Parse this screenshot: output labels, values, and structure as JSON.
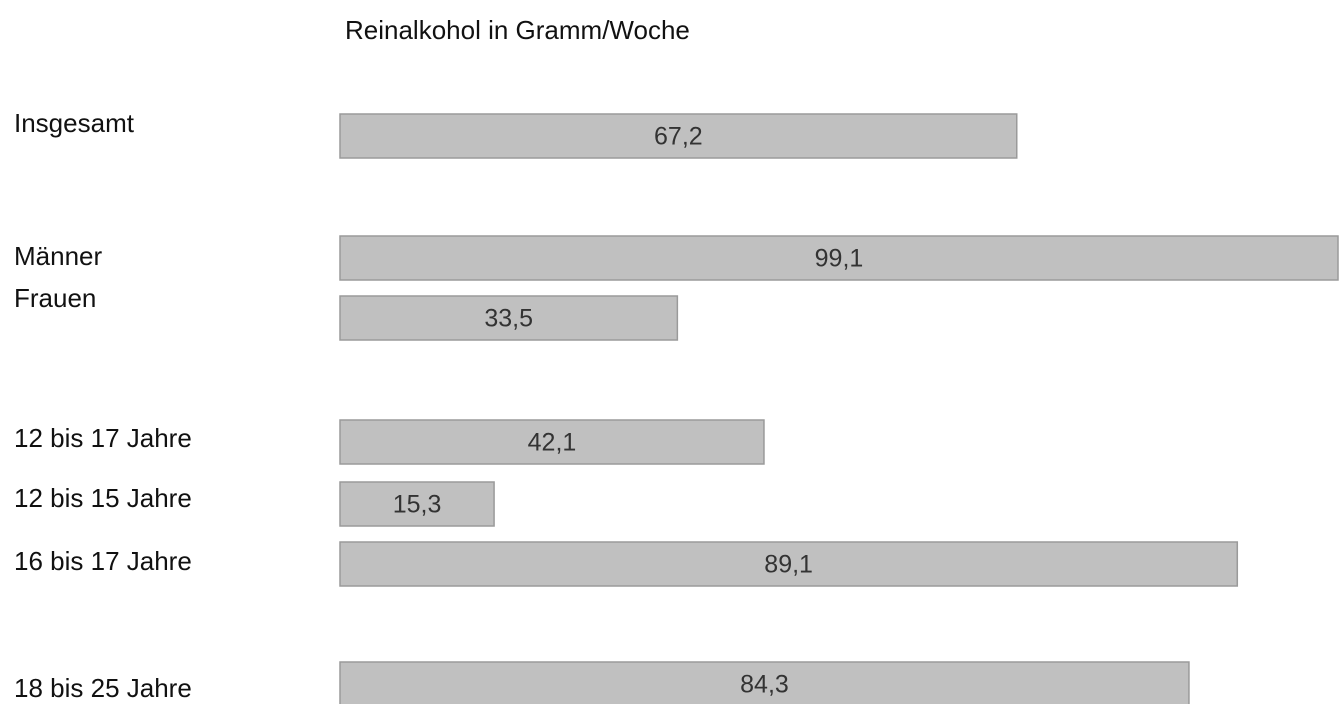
{
  "chart_data": {
    "type": "bar",
    "orientation": "horizontal",
    "title": "Reinalkohol in Gramm/Woche",
    "categories": [
      "Insgesamt",
      "Männer",
      "Frauen",
      "12 bis 17 Jahre",
      "12 bis 15 Jahre",
      "16 bis 17 Jahre",
      "18 bis 25 Jahre"
    ],
    "values": [
      67.2,
      99.1,
      33.5,
      42.1,
      15.3,
      89.1,
      84.3
    ],
    "value_labels": [
      "67,2",
      "99,1",
      "33,5",
      "42,1",
      "15,3",
      "89,1",
      "84,3"
    ],
    "color": "#c0c0c0"
  }
}
